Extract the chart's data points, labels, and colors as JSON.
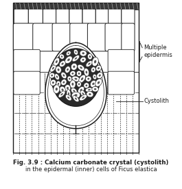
{
  "title_line1": "Fig. 3.9 : Calcium carbonate crystal (cystolith)",
  "title_line2": "in the epidermal (inner) cells of Ficus elastica",
  "label_multiple": "Multiple\nepidermis",
  "label_cystolith": "Cystolith",
  "bg_color": "#ffffff",
  "drawing_color": "#1a1a1a",
  "fig_width": 2.65,
  "fig_height": 2.76,
  "dpi": 100
}
